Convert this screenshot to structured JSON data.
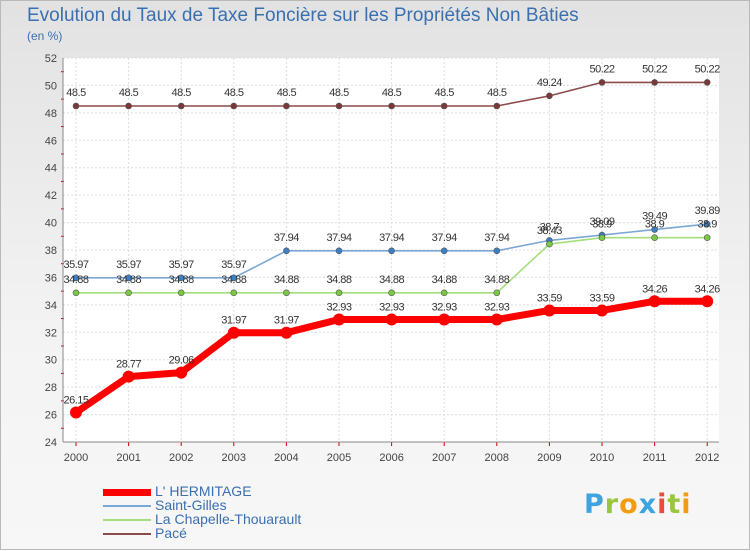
{
  "chart_data": {
    "type": "line",
    "title": "Evolution du Taux de Taxe Foncière sur les Propriétés Non Bâties",
    "ylabel": "(en %)",
    "xlabel": "",
    "ylim": [
      24,
      52
    ],
    "yticks": [
      24,
      26,
      28,
      30,
      32,
      34,
      36,
      38,
      40,
      42,
      44,
      46,
      48,
      50,
      52
    ],
    "categories": [
      "2000",
      "2001",
      "2002",
      "2003",
      "2004",
      "2005",
      "2006",
      "2007",
      "2008",
      "2009",
      "2010",
      "2011",
      "2012"
    ],
    "series": [
      {
        "name": "L' HERMITAGE",
        "color": "#ff0000",
        "values": [
          26.15,
          28.77,
          29.06,
          31.97,
          31.97,
          32.93,
          32.93,
          32.93,
          32.93,
          33.59,
          33.59,
          34.26,
          34.26
        ],
        "labels": [
          "26.15",
          "28.77",
          "29.06",
          "31.97",
          "31.97",
          "32.93",
          "32.93",
          "32.93",
          "32.93",
          "33.59",
          "33.59",
          "34.26",
          "34.26"
        ]
      },
      {
        "name": "Saint-Gilles",
        "color": "#7ba7d7",
        "marker": "#3c7fc4",
        "values": [
          35.97,
          35.97,
          35.97,
          35.97,
          37.94,
          37.94,
          37.94,
          37.94,
          37.94,
          38.7,
          39.09,
          39.49,
          39.89
        ],
        "labels": [
          "35.97",
          "35.97",
          "35.97",
          "35.97",
          "37.94",
          "37.94",
          "37.94",
          "37.94",
          "37.94",
          "38.7",
          "39.09",
          "39.49",
          "39.89"
        ]
      },
      {
        "name": "La Chapelle-Thouarault",
        "color": "#a5de7c",
        "marker": "#7bc844",
        "values": [
          34.88,
          34.88,
          34.88,
          34.88,
          34.88,
          34.88,
          34.88,
          34.88,
          34.88,
          38.43,
          38.9,
          38.9,
          38.9
        ],
        "labels": [
          "34.88",
          "34.88",
          "34.88",
          "34.88",
          "34.88",
          "34.88",
          "34.88",
          "34.88",
          "34.88",
          "38.43",
          "38.9",
          "38.9",
          "38.9"
        ]
      },
      {
        "name": "Pacé",
        "color": "#8c4b4b",
        "marker": "#7a3838",
        "values": [
          48.5,
          48.5,
          48.5,
          48.5,
          48.5,
          48.5,
          48.5,
          48.5,
          48.5,
          49.24,
          50.22,
          50.22,
          50.22
        ],
        "labels": [
          "48.5",
          "48.5",
          "48.5",
          "48.5",
          "48.5",
          "48.5",
          "48.5",
          "48.5",
          "48.5",
          "49.24",
          "50.22",
          "50.22",
          "50.22"
        ]
      }
    ],
    "legend_position": "bottom-left"
  },
  "brand": {
    "letters": [
      "P",
      "r",
      "o",
      "x",
      "i",
      "t",
      "i"
    ],
    "colors": [
      "#3fa3e0",
      "#9bc53d",
      "#f39c12",
      "#3fa3e0",
      "#e74c3c",
      "#9bc53d",
      "#f39c12"
    ]
  }
}
